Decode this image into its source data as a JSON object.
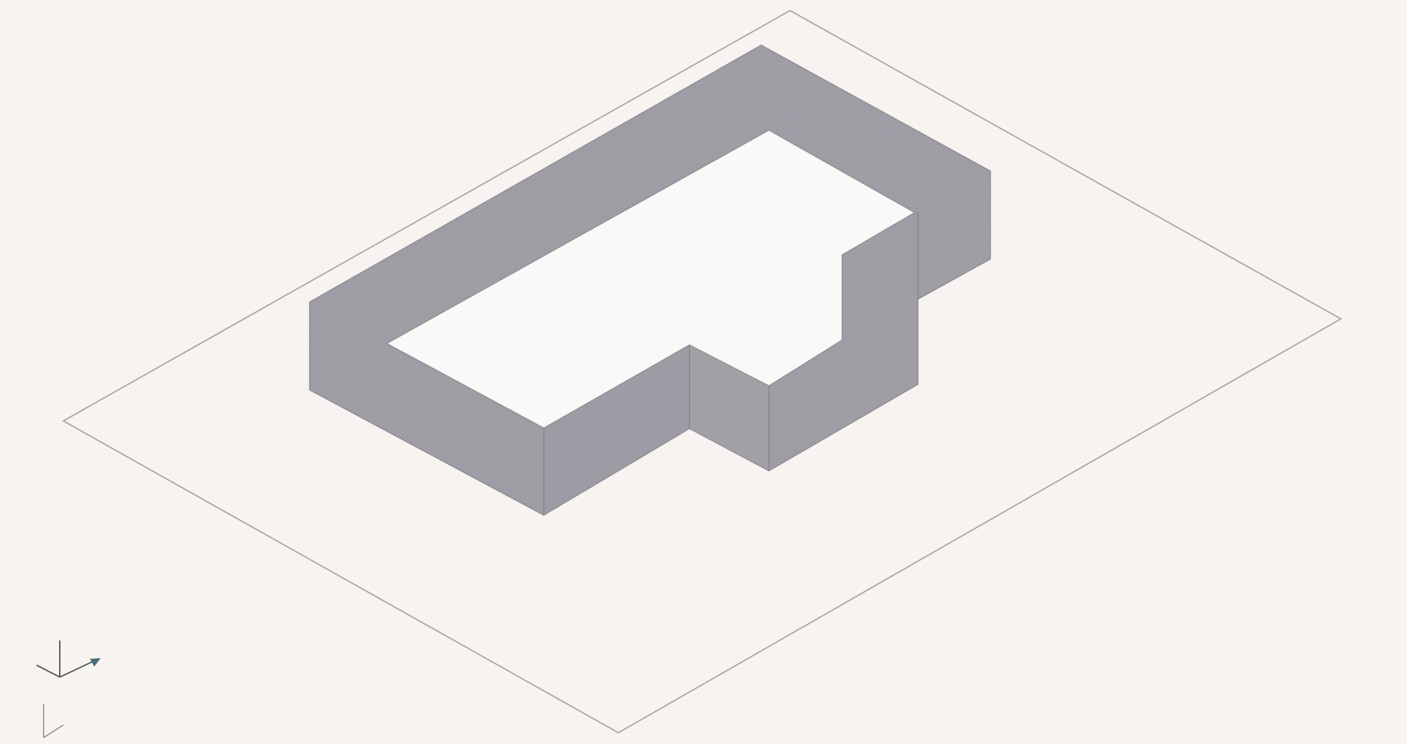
{
  "view": {
    "background_color": "#f7f3f1",
    "ground_plane_color": "#b7a6a8",
    "wall_outer_color": "#9b9aa0",
    "wall_inner_color": "#a7a5ab",
    "wall_edge_color": "#6d6a70",
    "top_face_color": "#fbf8f8"
  },
  "axis_indicator": {
    "icon": "ucs-axis-icon"
  }
}
